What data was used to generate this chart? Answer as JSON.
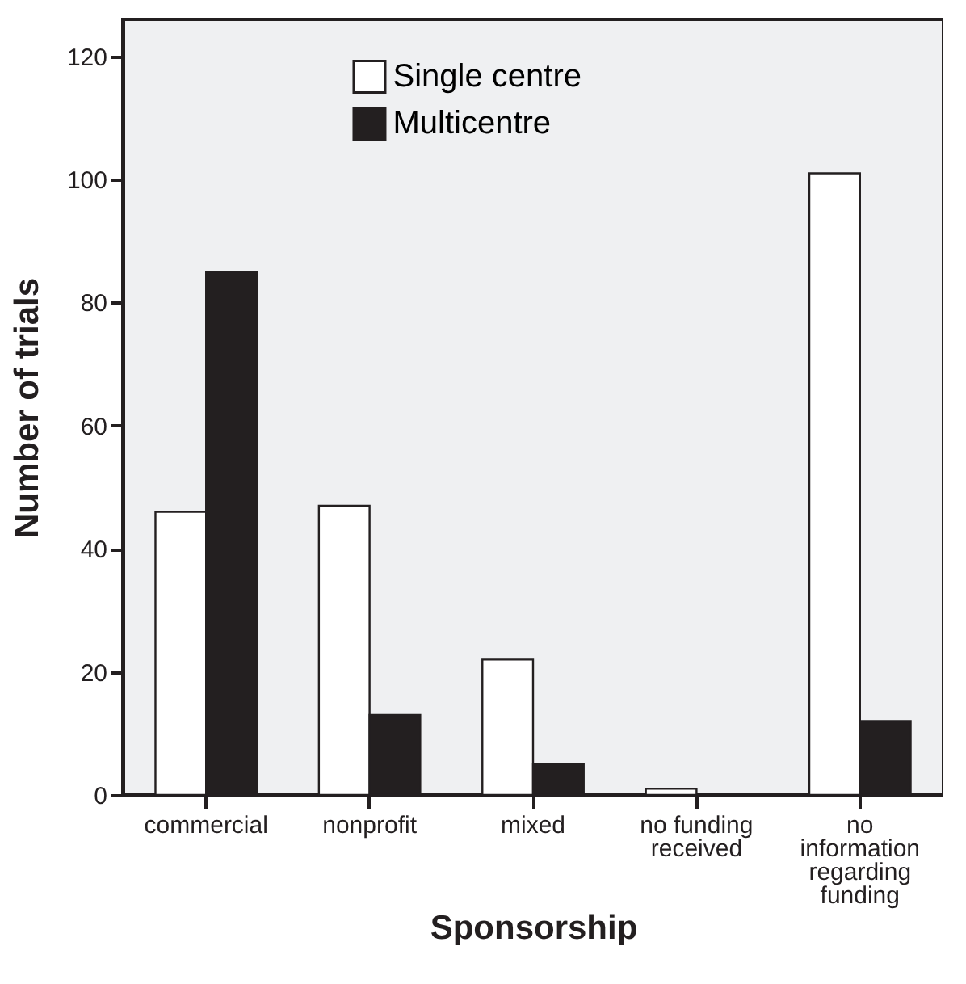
{
  "chart_data": {
    "type": "bar",
    "xlabel": "Sponsorship",
    "ylabel": "Number of trials",
    "categories": [
      "commercial",
      "nonprofit",
      "mixed",
      "no funding\nreceived",
      "no\ninformation\nregarding\nfunding"
    ],
    "series": [
      {
        "name": "Single centre",
        "color": "#ffffff",
        "values": [
          46,
          47,
          22,
          1,
          101
        ]
      },
      {
        "name": "Multicentre",
        "color": "#231f20",
        "values": [
          85,
          13,
          5,
          0,
          12
        ]
      }
    ],
    "ylim": [
      0,
      126
    ],
    "yticks": [
      0,
      20,
      40,
      60,
      80,
      100,
      120
    ],
    "grid": false,
    "legend": "top left"
  }
}
